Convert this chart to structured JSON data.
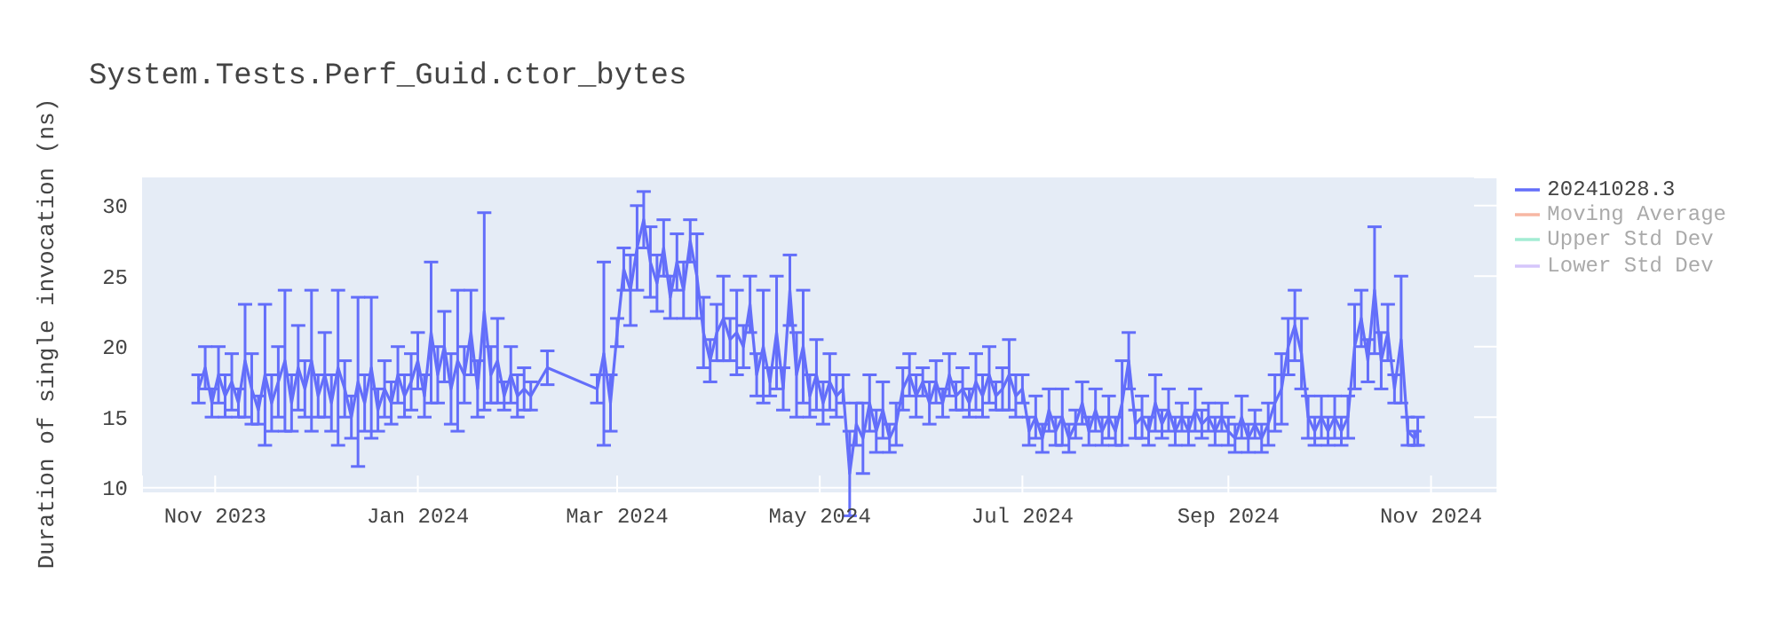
{
  "chart_data": {
    "type": "line",
    "title": "System.Tests.Perf_Guid.ctor_bytes",
    "ylabel": "Duration of single invocation (ns)",
    "x": [
      "2023-10-27",
      "2023-10-29",
      "2023-10-31",
      "2023-11-02",
      "2023-11-04",
      "2023-11-06",
      "2023-11-08",
      "2023-11-10",
      "2023-11-12",
      "2023-11-14",
      "2023-11-16",
      "2023-11-18",
      "2023-11-20",
      "2023-11-22",
      "2023-11-24",
      "2023-11-26",
      "2023-11-28",
      "2023-11-30",
      "2023-12-02",
      "2023-12-04",
      "2023-12-06",
      "2023-12-08",
      "2023-12-10",
      "2023-12-12",
      "2023-12-14",
      "2023-12-16",
      "2023-12-18",
      "2023-12-20",
      "2023-12-22",
      "2023-12-24",
      "2023-12-26",
      "2023-12-28",
      "2023-12-30",
      "2024-01-01",
      "2024-01-03",
      "2024-01-05",
      "2024-01-07",
      "2024-01-09",
      "2024-01-11",
      "2024-01-13",
      "2024-01-15",
      "2024-01-17",
      "2024-01-19",
      "2024-01-21",
      "2024-01-23",
      "2024-01-25",
      "2024-01-27",
      "2024-01-29",
      "2024-01-31",
      "2024-02-02",
      "2024-02-04",
      "2024-02-09",
      "2024-02-24",
      "2024-02-26",
      "2024-02-28",
      "2024-03-01",
      "2024-03-03",
      "2024-03-05",
      "2024-03-07",
      "2024-03-09",
      "2024-03-11",
      "2024-03-13",
      "2024-03-15",
      "2024-03-17",
      "2024-03-19",
      "2024-03-21",
      "2024-03-23",
      "2024-03-25",
      "2024-03-27",
      "2024-03-29",
      "2024-03-31",
      "2024-04-02",
      "2024-04-04",
      "2024-04-06",
      "2024-04-08",
      "2024-04-10",
      "2024-04-12",
      "2024-04-14",
      "2024-04-16",
      "2024-04-18",
      "2024-04-20",
      "2024-04-22",
      "2024-04-24",
      "2024-04-26",
      "2024-04-28",
      "2024-04-30",
      "2024-05-02",
      "2024-05-04",
      "2024-05-06",
      "2024-05-08",
      "2024-05-10",
      "2024-05-12",
      "2024-05-14",
      "2024-05-16",
      "2024-05-18",
      "2024-05-20",
      "2024-05-22",
      "2024-05-24",
      "2024-05-26",
      "2024-05-28",
      "2024-05-30",
      "2024-06-01",
      "2024-06-03",
      "2024-06-05",
      "2024-06-07",
      "2024-06-09",
      "2024-06-11",
      "2024-06-13",
      "2024-06-15",
      "2024-06-17",
      "2024-06-19",
      "2024-06-21",
      "2024-06-23",
      "2024-06-25",
      "2024-06-27",
      "2024-06-29",
      "2024-07-01",
      "2024-07-03",
      "2024-07-05",
      "2024-07-07",
      "2024-07-09",
      "2024-07-11",
      "2024-07-13",
      "2024-07-15",
      "2024-07-17",
      "2024-07-19",
      "2024-07-21",
      "2024-07-23",
      "2024-07-25",
      "2024-07-27",
      "2024-07-29",
      "2024-07-31",
      "2024-08-02",
      "2024-08-04",
      "2024-08-06",
      "2024-08-08",
      "2024-08-10",
      "2024-08-12",
      "2024-08-14",
      "2024-08-16",
      "2024-08-18",
      "2024-08-20",
      "2024-08-22",
      "2024-08-24",
      "2024-08-26",
      "2024-08-28",
      "2024-08-30",
      "2024-09-01",
      "2024-09-03",
      "2024-09-05",
      "2024-09-07",
      "2024-09-09",
      "2024-09-11",
      "2024-09-13",
      "2024-09-15",
      "2024-09-17",
      "2024-09-19",
      "2024-09-21",
      "2024-09-23",
      "2024-09-25",
      "2024-09-27",
      "2024-09-29",
      "2024-10-01",
      "2024-10-03",
      "2024-10-05",
      "2024-10-07",
      "2024-10-09",
      "2024-10-11",
      "2024-10-13",
      "2024-10-15",
      "2024-10-17",
      "2024-10-19",
      "2024-10-21",
      "2024-10-23",
      "2024-10-25",
      "2024-10-27",
      "2024-10-28"
    ],
    "series": [
      {
        "name": "20241028.3",
        "color": "#636efa",
        "values": [
          17,
          18.5,
          16,
          18,
          16.5,
          17.5,
          16,
          19,
          17,
          15.5,
          18,
          16,
          17.5,
          19,
          16,
          18.5,
          17,
          19,
          16.5,
          18,
          16,
          18.5,
          17,
          15,
          17.5,
          16,
          18.5,
          15.5,
          17,
          16,
          18,
          16.5,
          17.5,
          19,
          16.5,
          21,
          18,
          20,
          17,
          19,
          18,
          21,
          17,
          22.5,
          18,
          19,
          16.5,
          18,
          16.5,
          17,
          16.5,
          18.5,
          17,
          19.5,
          16,
          21,
          25.5,
          24,
          27,
          29,
          26,
          24.5,
          27,
          23.5,
          26,
          24,
          27.5,
          25,
          21,
          19,
          21,
          22,
          20.5,
          21,
          20,
          23,
          18,
          20,
          17.5,
          21,
          17,
          24,
          18,
          20,
          16.5,
          18,
          16,
          17.5,
          16.5,
          17,
          11,
          14.5,
          13.5,
          16,
          14,
          15.5,
          13.5,
          14.5,
          17,
          18,
          16.5,
          17.5,
          16,
          17.5,
          16,
          18,
          16.5,
          17,
          16,
          17.5,
          16.5,
          18,
          16.5,
          17,
          18,
          16.5,
          17,
          14,
          15,
          13.5,
          15.5,
          14,
          15,
          13.5,
          14.5,
          16,
          14,
          15.5,
          14,
          15,
          14,
          16,
          19,
          14.5,
          15,
          14,
          16,
          14.5,
          15.5,
          14,
          15,
          14,
          15.5,
          14.5,
          15,
          14,
          15,
          14,
          13.5,
          15,
          13.5,
          14.5,
          13.5,
          14.5,
          16,
          17,
          20,
          21.5,
          19.5,
          15,
          14,
          15,
          14,
          15,
          14,
          15,
          20,
          22,
          19,
          24,
          19,
          21,
          17,
          20.5,
          14,
          13.5,
          14
        ],
        "errors": [
          1,
          1.5,
          1,
          2,
          1.5,
          2,
          1,
          4,
          2.5,
          1,
          5,
          2,
          2.5,
          5,
          2,
          3,
          2,
          5,
          1.5,
          3,
          2,
          5.5,
          2,
          1.5,
          6,
          2,
          5,
          1.5,
          2,
          1.5,
          2,
          1.5,
          2,
          2,
          1.5,
          5,
          2,
          2.5,
          2.5,
          5,
          2,
          3,
          2,
          7,
          2,
          3,
          1,
          2,
          1.5,
          1.5,
          1,
          1.2,
          1,
          6.5,
          2,
          1,
          1.5,
          2.5,
          3,
          2,
          2.5,
          2,
          2,
          1.5,
          2,
          2,
          1.5,
          3,
          2.5,
          1.5,
          2,
          3,
          1.5,
          3,
          1.5,
          2,
          1.5,
          4,
          1,
          4,
          1.5,
          2.5,
          3,
          4,
          1.5,
          2.5,
          1.5,
          2,
          1.5,
          1,
          3,
          1.5,
          2.5,
          2,
          1.5,
          2,
          1,
          1.5,
          1.5,
          1.5,
          1.5,
          1,
          1.5,
          1.5,
          1,
          1.5,
          1,
          1.5,
          1,
          2,
          1.5,
          2,
          1,
          1.5,
          2.5,
          1.5,
          1,
          1,
          1.5,
          1,
          1.5,
          1,
          2,
          1,
          1,
          1.5,
          1,
          1.5,
          1,
          1.5,
          1,
          3,
          2,
          1,
          1.5,
          1,
          2,
          1,
          1.5,
          1,
          1,
          1,
          1.5,
          1,
          1,
          1,
          1,
          1,
          1,
          1.5,
          1,
          1,
          1,
          1.5,
          2,
          2.5,
          2,
          2.5,
          2.5,
          1.5,
          1,
          1.5,
          1,
          1.5,
          1,
          1.5,
          3,
          2,
          1.5,
          4.5,
          2,
          2,
          1,
          4.5,
          1,
          0.5,
          1
        ]
      },
      {
        "name": "Moving Average",
        "color": "#f7b7a3",
        "values": [
          null,
          null,
          null,
          null,
          null,
          null,
          null,
          null,
          null,
          null,
          null,
          null,
          null,
          null,
          null,
          null,
          null,
          null,
          null,
          null,
          null,
          null,
          null,
          null,
          null,
          null,
          null,
          null,
          null,
          null,
          null,
          null,
          null,
          null,
          null,
          null,
          null,
          null,
          null,
          null,
          null,
          null,
          null,
          null,
          null,
          null,
          null,
          null,
          null,
          null,
          null,
          null,
          null,
          null,
          null,
          null,
          null,
          null,
          null,
          null,
          null,
          null,
          null,
          null,
          null,
          null,
          null,
          null,
          null,
          null,
          null,
          null,
          null,
          null,
          null,
          null,
          null,
          null,
          null,
          null,
          null,
          null,
          null,
          null,
          null,
          null,
          null,
          null,
          null,
          null,
          null,
          null,
          null,
          null,
          null,
          null,
          null,
          null,
          null,
          null,
          null,
          null,
          null,
          null,
          null,
          null,
          null,
          null,
          null,
          null,
          null,
          null,
          null,
          null,
          null,
          null,
          null,
          null,
          null,
          null,
          null,
          null,
          null,
          null,
          null,
          null,
          null,
          null,
          null,
          null,
          null,
          null,
          null,
          null,
          null,
          null,
          null,
          null,
          null,
          null,
          null,
          null,
          null,
          null,
          null,
          null,
          null,
          null,
          null,
          null,
          null,
          null,
          null,
          null,
          null,
          null,
          null,
          null,
          null,
          null,
          null,
          null,
          null,
          null,
          null,
          null,
          null,
          null,
          null,
          null,
          null,
          null,
          null,
          null,
          null,
          null,
          null
        ]
      },
      {
        "name": "Upper Std Dev",
        "color": "#a3ecd3",
        "values": [
          null,
          null,
          null,
          null,
          null,
          null,
          null,
          null,
          null,
          null,
          null,
          null,
          null,
          null,
          null,
          null,
          null,
          null,
          null,
          null,
          null,
          null,
          null,
          null,
          null,
          null,
          null,
          null,
          null,
          null,
          null,
          null,
          null,
          null,
          null,
          null,
          null,
          null,
          null,
          null,
          null,
          null,
          null,
          null,
          null,
          null,
          null,
          null,
          null,
          null,
          null,
          null,
          null,
          null,
          null,
          null,
          null,
          null,
          null,
          null,
          null,
          null,
          null,
          null,
          null,
          null,
          null,
          null,
          null,
          null,
          null,
          null,
          null,
          null,
          null,
          null,
          null,
          null,
          null,
          null,
          null,
          null,
          null,
          null,
          null,
          null,
          null,
          null,
          null,
          null,
          null,
          null,
          null,
          null,
          null,
          null,
          null,
          null,
          null,
          null,
          null,
          null,
          null,
          null,
          null,
          null,
          null,
          null,
          null,
          null,
          null,
          null,
          null,
          null,
          null,
          null,
          null,
          null,
          null,
          null,
          null,
          null,
          null,
          null,
          null,
          null,
          null,
          null,
          null,
          null,
          null,
          null,
          null,
          null,
          null,
          null,
          null,
          null,
          null,
          null,
          null,
          null,
          null,
          null,
          null,
          null,
          null,
          null,
          null,
          null,
          null,
          null,
          null,
          null,
          null,
          null,
          null,
          null,
          null,
          null,
          null,
          null,
          null,
          null,
          null,
          null,
          null,
          null,
          null,
          null,
          null,
          null,
          null,
          null,
          null,
          null,
          null
        ]
      },
      {
        "name": "Lower Std Dev",
        "color": "#d5c6fb",
        "values": [
          null,
          null,
          null,
          null,
          null,
          null,
          null,
          null,
          null,
          null,
          null,
          null,
          null,
          null,
          null,
          null,
          null,
          null,
          null,
          null,
          null,
          null,
          null,
          null,
          null,
          null,
          null,
          null,
          null,
          null,
          null,
          null,
          null,
          null,
          null,
          null,
          null,
          null,
          null,
          null,
          null,
          null,
          null,
          null,
          null,
          null,
          null,
          null,
          null,
          null,
          null,
          null,
          null,
          null,
          null,
          null,
          null,
          null,
          null,
          null,
          null,
          null,
          null,
          null,
          null,
          null,
          null,
          null,
          null,
          null,
          null,
          null,
          null,
          null,
          null,
          null,
          null,
          null,
          null,
          null,
          null,
          null,
          null,
          null,
          null,
          null,
          null,
          null,
          null,
          null,
          null,
          null,
          null,
          null,
          null,
          null,
          null,
          null,
          null,
          null,
          null,
          null,
          null,
          null,
          null,
          null,
          null,
          null,
          null,
          null,
          null,
          null,
          null,
          null,
          null,
          null,
          null,
          null,
          null,
          null,
          null,
          null,
          null,
          null,
          null,
          null,
          null,
          null,
          null,
          null,
          null,
          null,
          null,
          null,
          null,
          null,
          null,
          null,
          null,
          null,
          null,
          null,
          null,
          null,
          null,
          null,
          null,
          null,
          null,
          null,
          null,
          null,
          null,
          null,
          null,
          null,
          null,
          null,
          null,
          null,
          null,
          null,
          null,
          null,
          null,
          null,
          null,
          null,
          null,
          null,
          null,
          null,
          null,
          null,
          null,
          null,
          null
        ]
      }
    ],
    "xlim": [
      "2023-10-10",
      "2024-11-21"
    ],
    "xticks": [
      {
        "value": "2023-11-01",
        "label": "Nov 2023"
      },
      {
        "value": "2024-01-01",
        "label": "Jan 2024"
      },
      {
        "value": "2024-03-01",
        "label": "Mar 2024"
      },
      {
        "value": "2024-05-01",
        "label": "May 2024"
      },
      {
        "value": "2024-07-01",
        "label": "Jul 2024"
      },
      {
        "value": "2024-09-01",
        "label": "Sep 2024"
      },
      {
        "value": "2024-11-01",
        "label": "Nov 2024"
      }
    ],
    "ylim": [
      9.6,
      32
    ],
    "yticks": [
      10,
      15,
      20,
      25,
      30
    ],
    "grid": true,
    "legend": "top right",
    "marker": "none",
    "line_style": "solid"
  }
}
